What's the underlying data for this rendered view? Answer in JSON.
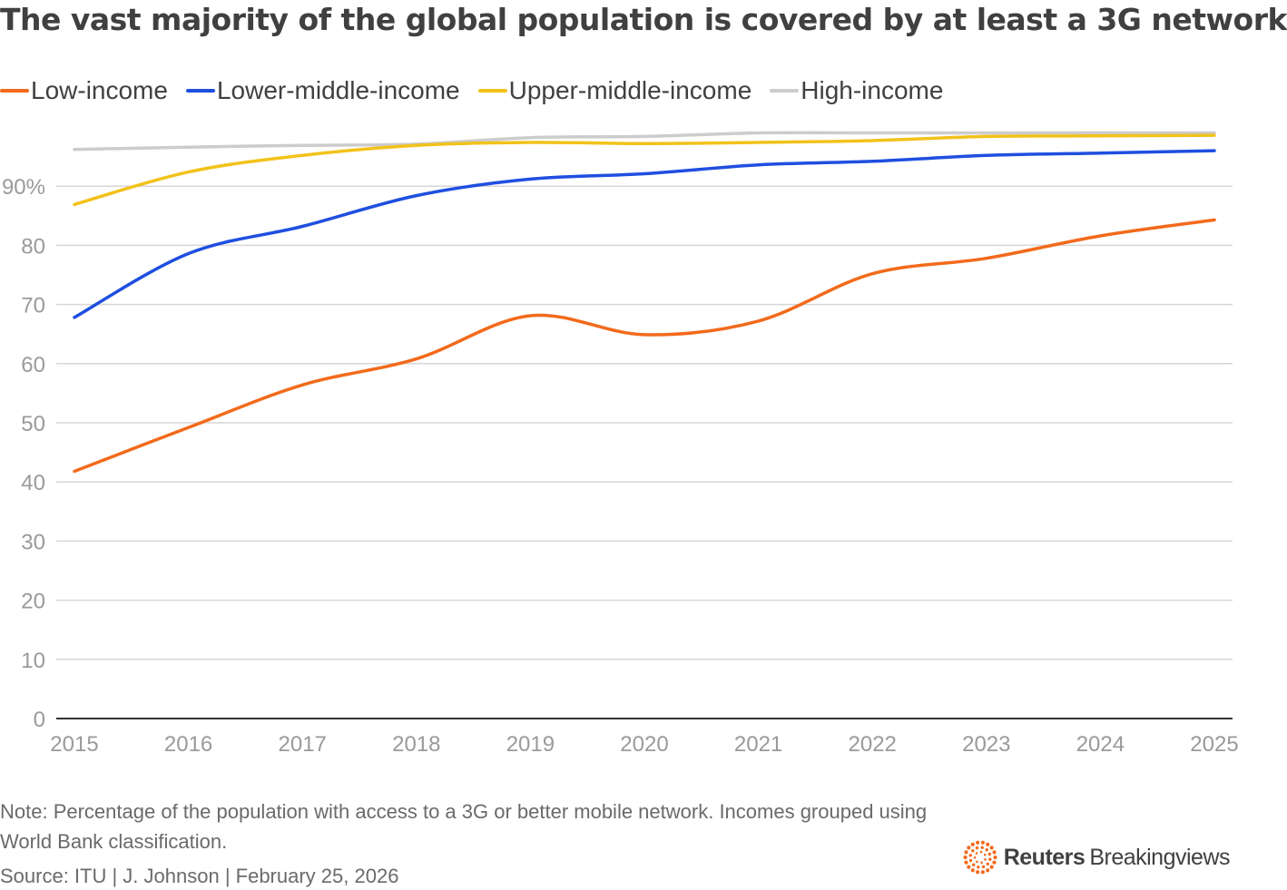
{
  "title": "The vast majority of the global population is covered by at least a 3G network",
  "colors": {
    "low_income": "#f26a1b",
    "lower_middle_income": "#1f4fe0",
    "upper_middle_income": "#f2c21b",
    "high_income": "#cccccc",
    "grid": "#d6d6d6",
    "axis": "#333333",
    "brand": "#f26a1b"
  },
  "legend": [
    {
      "name": "Low-income",
      "color": "#f26a1b"
    },
    {
      "name": "Lower-middle-income",
      "color": "#1f4fe0"
    },
    {
      "name": "Upper-middle-income",
      "color": "#f2c21b"
    },
    {
      "name": "High-income",
      "color": "#cccccc"
    }
  ],
  "chart_data": {
    "type": "line",
    "x": [
      2015,
      2016,
      2017,
      2018,
      2019,
      2020,
      2021,
      2022,
      2023,
      2024,
      2025
    ],
    "xticks": [
      "2015",
      "2016",
      "2017",
      "2018",
      "2019",
      "2020",
      "2021",
      "2022",
      "2023",
      "2024",
      "2025"
    ],
    "yticks": [
      {
        "value": 0,
        "label": "0"
      },
      {
        "value": 10,
        "label": "10"
      },
      {
        "value": 20,
        "label": "20"
      },
      {
        "value": 30,
        "label": "30"
      },
      {
        "value": 40,
        "label": "40"
      },
      {
        "value": 50,
        "label": "50"
      },
      {
        "value": 60,
        "label": "60"
      },
      {
        "value": 70,
        "label": "70"
      },
      {
        "value": 80,
        "label": "80"
      },
      {
        "value": 90,
        "label": "90%"
      }
    ],
    "ylim": [
      0,
      100
    ],
    "grid": true,
    "legend_position": "top",
    "series": [
      {
        "name": "High-income",
        "color": "#cccccc",
        "values": [
          96.2,
          96.6,
          96.9,
          97.1,
          98.2,
          98.4,
          99.0,
          99.0,
          99.0,
          99.0,
          99.0
        ]
      },
      {
        "name": "Upper-middle-income",
        "color": "#f2c21b",
        "values": [
          86.9,
          92.4,
          95.2,
          96.9,
          97.4,
          97.2,
          97.4,
          97.7,
          98.4,
          98.5,
          98.6
        ]
      },
      {
        "name": "Lower-middle-income",
        "color": "#1f4fe0",
        "values": [
          67.8,
          78.6,
          83.2,
          88.4,
          91.2,
          92.1,
          93.6,
          94.2,
          95.2,
          95.6,
          96.0
        ]
      },
      {
        "name": "Low-income",
        "color": "#f26a1b",
        "values": [
          41.8,
          49.2,
          56.4,
          60.8,
          68.1,
          64.9,
          67.2,
          75.2,
          77.8,
          81.6,
          84.3
        ]
      }
    ]
  },
  "note": "Note: Percentage of the population with access to a 3G or better mobile network. Incomes grouped using World Bank classification.",
  "source": "Source: ITU | J. Johnson | February 25, 2026",
  "brand": {
    "strong": "Reuters",
    "light": "Breakingviews",
    "logo_icon": "reuters-dot-ring-logo"
  }
}
